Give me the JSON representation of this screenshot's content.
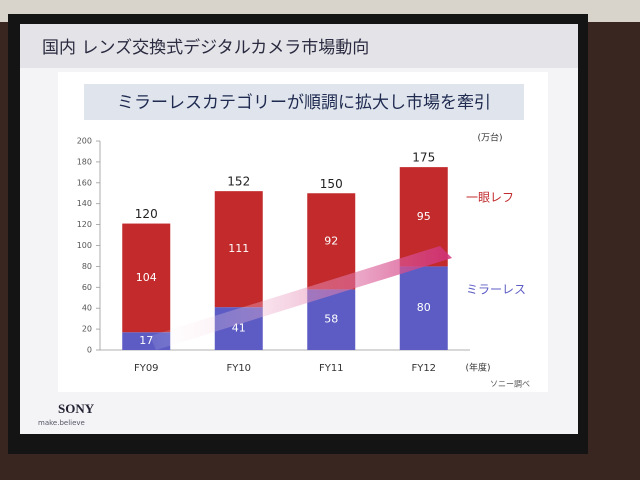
{
  "chart_data": {
    "type": "stacked_bar",
    "title": "国内 レンズ交換式デジタルカメラ市場動向",
    "subtitle": "ミラーレスカテゴリーが順調に拡大し市場を牽引",
    "y_unit": "(万台)",
    "x_unit": "(年度)",
    "source": "ソニー調べ",
    "categories": [
      "FY09",
      "FY10",
      "FY11",
      "FY12"
    ],
    "series": [
      {
        "name": "ミラーレス",
        "color": "#5c5cc4",
        "values": [
          17,
          41,
          58,
          80
        ]
      },
      {
        "name": "一眼レフ",
        "color": "#c22a2c",
        "values": [
          104,
          111,
          92,
          95
        ]
      }
    ],
    "totals": [
      120,
      152,
      150,
      175
    ],
    "ylim": [
      0,
      200
    ],
    "yticks": [
      0,
      20,
      40,
      60,
      80,
      100,
      120,
      140,
      160,
      180,
      200
    ]
  },
  "slide": {
    "logo": "SONY",
    "tagline": "make.believe"
  }
}
